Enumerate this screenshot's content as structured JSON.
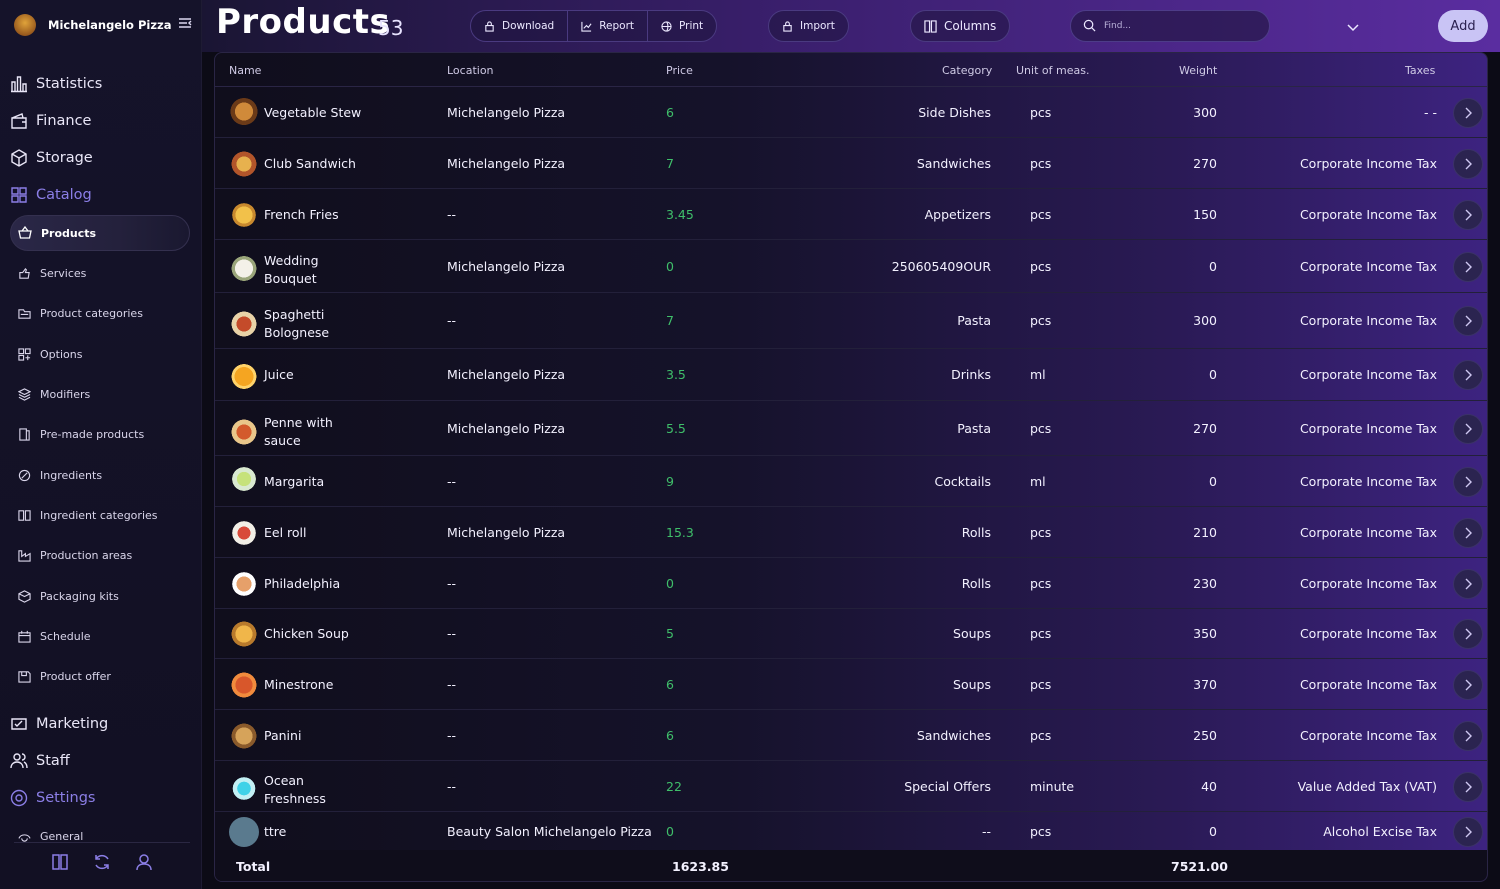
{
  "brand": {
    "name": "Michelangelo Pizza"
  },
  "nav": {
    "main_top": [
      {
        "label": "Statistics",
        "icon": "bar-chart-icon"
      },
      {
        "label": "Finance",
        "icon": "wallet-icon"
      },
      {
        "label": "Storage",
        "icon": "box-icon"
      },
      {
        "label": "Catalog",
        "icon": "grid-icon"
      }
    ],
    "sub": [
      {
        "label": "Products"
      },
      {
        "label": "Services"
      },
      {
        "label": "Product categories"
      },
      {
        "label": "Options"
      },
      {
        "label": "Modifiers"
      },
      {
        "label": "Pre-made products"
      },
      {
        "label": "Ingredients"
      },
      {
        "label": "Ingredient categories"
      },
      {
        "label": "Production areas"
      },
      {
        "label": "Packaging kits"
      },
      {
        "label": "Schedule"
      },
      {
        "label": "Product offer"
      }
    ],
    "main_bottom": [
      {
        "label": "Marketing"
      },
      {
        "label": "Staff"
      },
      {
        "label": "Settings"
      }
    ],
    "general_label": "General"
  },
  "header": {
    "title": "Products",
    "count": "53",
    "download": "Download",
    "report": "Report",
    "print": "Print",
    "import": "Import",
    "columns": "Columns",
    "search_placeholder": "Find...",
    "add": "Add"
  },
  "table": {
    "columns": {
      "name": "Name",
      "location": "Location",
      "price": "Price",
      "category": "Category",
      "unit": "Unit of meas.",
      "weight": "Weight",
      "taxes": "Taxes"
    },
    "rows": [
      {
        "name": "Vegetable Stew",
        "location": "Michelangelo Pizza",
        "price": "6",
        "category": "Side Dishes",
        "unit": "pcs",
        "weight": "300",
        "taxes": "- -"
      },
      {
        "name": "Club Sandwich",
        "location": "Michelangelo Pizza",
        "price": "7",
        "category": "Sandwiches",
        "unit": "pcs",
        "weight": "270",
        "taxes": "Corporate Income Tax"
      },
      {
        "name": "French Fries",
        "location": "--",
        "price": "3.45",
        "category": "Appetizers",
        "unit": "pcs",
        "weight": "150",
        "taxes": "Corporate Income Tax"
      },
      {
        "name": "Wedding Bouquet",
        "location": "Michelangelo Pizza",
        "price": "0",
        "category": "250605409OUR",
        "unit": "pcs",
        "weight": "0",
        "taxes": "Corporate Income Tax"
      },
      {
        "name": "Spaghetti Bolognese",
        "location": "--",
        "price": "7",
        "category": "Pasta",
        "unit": "pcs",
        "weight": "300",
        "taxes": "Corporate Income Tax"
      },
      {
        "name": "Juice",
        "location": "Michelangelo Pizza",
        "price": "3.5",
        "category": "Drinks",
        "unit": "ml",
        "weight": "0",
        "taxes": "Corporate Income Tax"
      },
      {
        "name": "Penne with sauce",
        "location": "Michelangelo Pizza",
        "price": "5.5",
        "category": "Pasta",
        "unit": "pcs",
        "weight": "270",
        "taxes": "Corporate Income Tax"
      },
      {
        "name": "Margarita",
        "location": "--",
        "price": "9",
        "category": "Cocktails",
        "unit": "ml",
        "weight": "0",
        "taxes": "Corporate Income Tax"
      },
      {
        "name": "Eel roll",
        "location": "Michelangelo Pizza",
        "price": "15.3",
        "category": "Rolls",
        "unit": "pcs",
        "weight": "210",
        "taxes": "Corporate Income Tax"
      },
      {
        "name": "Philadelphia",
        "location": "--",
        "price": "0",
        "category": "Rolls",
        "unit": "pcs",
        "weight": "230",
        "taxes": "Corporate Income Tax"
      },
      {
        "name": "Chicken Soup",
        "location": "--",
        "price": "5",
        "category": "Soups",
        "unit": "pcs",
        "weight": "350",
        "taxes": "Corporate Income Tax"
      },
      {
        "name": "Minestrone",
        "location": "--",
        "price": "6",
        "category": "Soups",
        "unit": "pcs",
        "weight": "370",
        "taxes": "Corporate Income Tax"
      },
      {
        "name": "Panini",
        "location": "--",
        "price": "6",
        "category": "Sandwiches",
        "unit": "pcs",
        "weight": "250",
        "taxes": "Corporate Income Tax"
      },
      {
        "name": "Ocean Freshness",
        "location": "--",
        "price": "22",
        "category": "Special Offers",
        "unit": "minute",
        "weight": "40",
        "taxes": "Value Added Tax (VAT)"
      },
      {
        "name": "ttre",
        "location": "Beauty Salon Michelangelo Pizza",
        "price": "0",
        "category": "--",
        "unit": "pcs",
        "weight": "0",
        "taxes": "Alcohol Excise Tax"
      }
    ],
    "footer": {
      "label": "Total",
      "price_total": "1623.85",
      "weight_total": "7521.00"
    }
  },
  "colors": {
    "accent": "#8b7ee6",
    "price": "#3fbf6a",
    "add_button": "#c9c4f5"
  }
}
